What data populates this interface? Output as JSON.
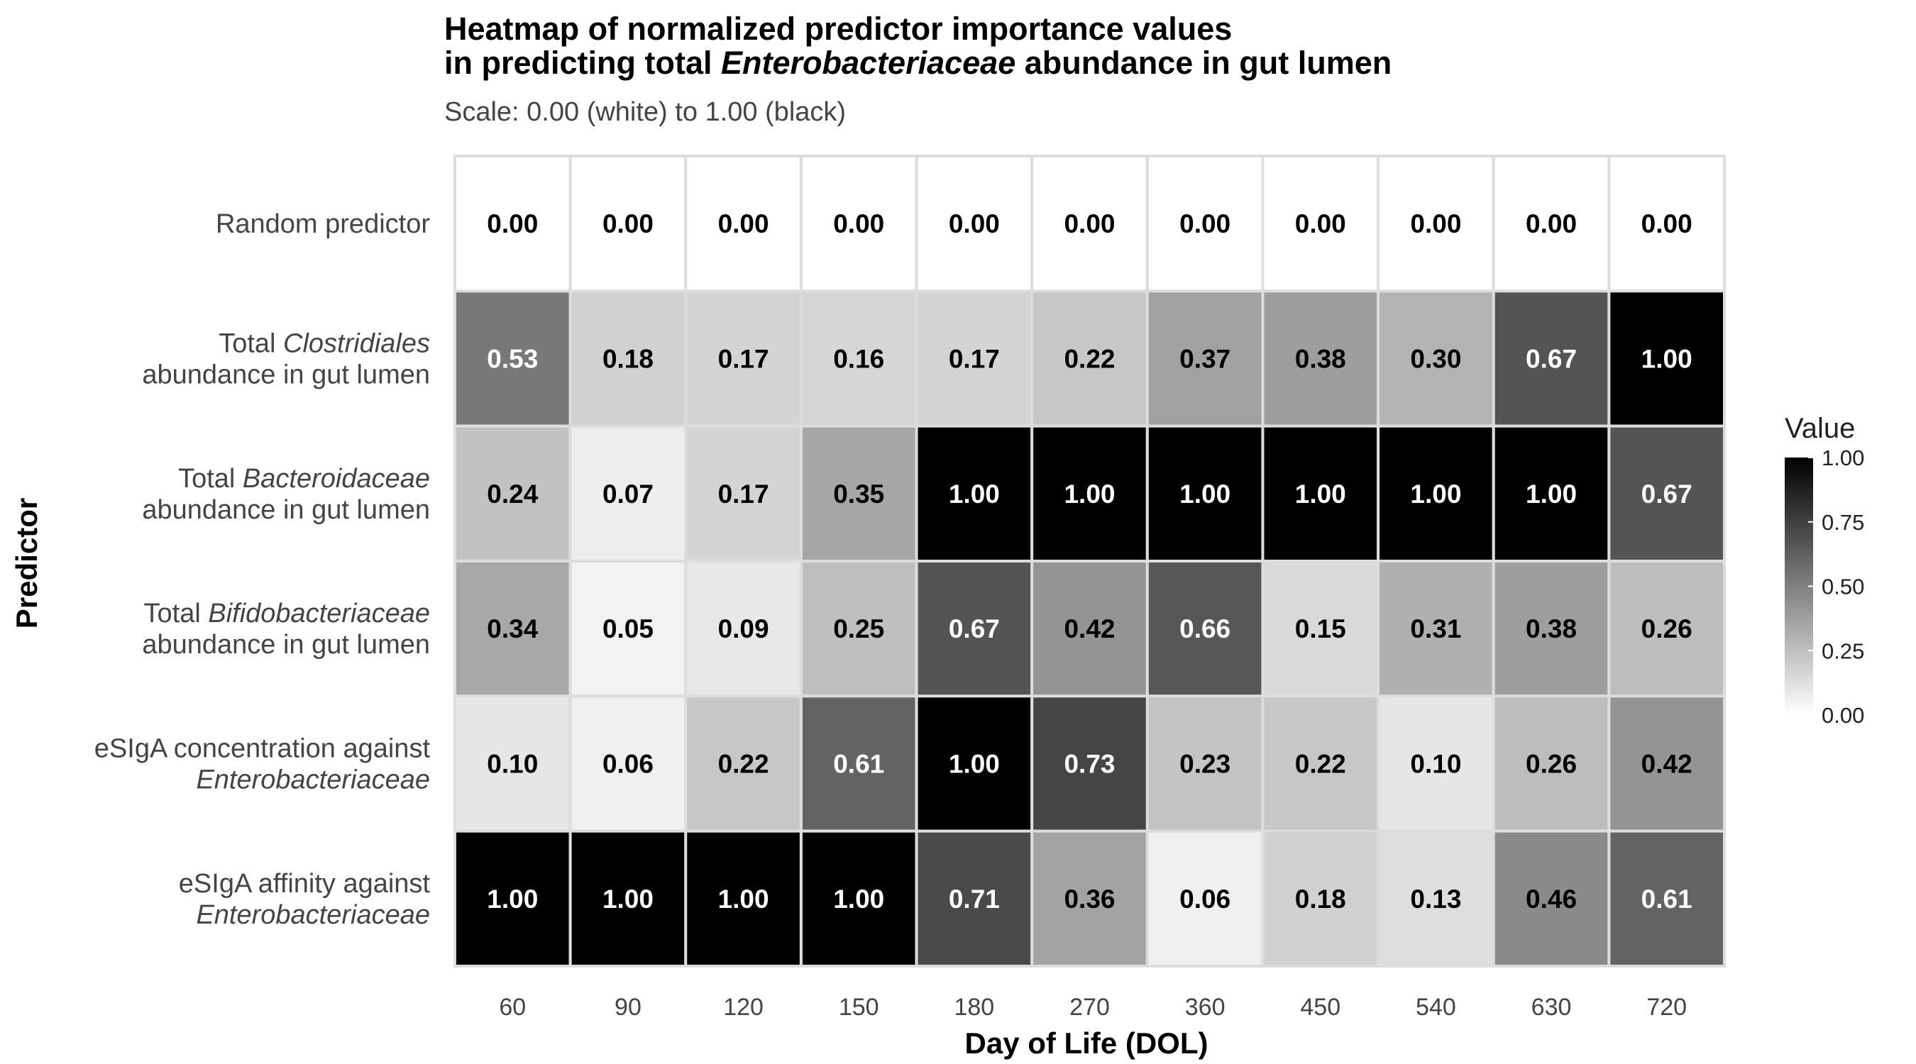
{
  "chart_data": {
    "type": "heatmap",
    "title_line1": "Heatmap of normalized predictor importance values",
    "title_line2_prefix": "in predicting total ",
    "title_line2_italic": "Enterobacteriaceae",
    "title_line2_suffix": " abundance in gut lumen",
    "subtitle": "Scale: 0.00 (white) to 1.00 (black)",
    "xlabel": "Day of Life (DOL)",
    "ylabel": "Predictor",
    "x_categories": [
      "60",
      "90",
      "120",
      "150",
      "180",
      "270",
      "360",
      "450",
      "540",
      "630",
      "720"
    ],
    "rows": [
      {
        "line1": [
          {
            "text": "Random predictor",
            "italic": false
          }
        ],
        "line2": [],
        "values": [
          0.0,
          0.0,
          0.0,
          0.0,
          0.0,
          0.0,
          0.0,
          0.0,
          0.0,
          0.0,
          0.0
        ]
      },
      {
        "line1": [
          {
            "text": "Total ",
            "italic": false
          },
          {
            "text": "Clostridiales",
            "italic": true
          }
        ],
        "line2": [
          {
            "text": "abundance in gut lumen",
            "italic": false
          }
        ],
        "values": [
          0.53,
          0.18,
          0.17,
          0.16,
          0.17,
          0.22,
          0.37,
          0.38,
          0.3,
          0.67,
          1.0
        ]
      },
      {
        "line1": [
          {
            "text": "Total ",
            "italic": false
          },
          {
            "text": "Bacteroidaceae",
            "italic": true
          }
        ],
        "line2": [
          {
            "text": "abundance in gut lumen",
            "italic": false
          }
        ],
        "values": [
          0.24,
          0.07,
          0.17,
          0.35,
          1.0,
          1.0,
          1.0,
          1.0,
          1.0,
          1.0,
          0.67
        ]
      },
      {
        "line1": [
          {
            "text": "Total ",
            "italic": false
          },
          {
            "text": "Bifidobacteriaceae",
            "italic": true
          }
        ],
        "line2": [
          {
            "text": "abundance in gut lumen",
            "italic": false
          }
        ],
        "values": [
          0.34,
          0.05,
          0.09,
          0.25,
          0.67,
          0.42,
          0.66,
          0.15,
          0.31,
          0.38,
          0.26
        ]
      },
      {
        "line1": [
          {
            "text": "eSIgA concentration against",
            "italic": false
          }
        ],
        "line2": [
          {
            "text": "Enterobacteriaceae",
            "italic": true
          }
        ],
        "values": [
          0.1,
          0.06,
          0.22,
          0.61,
          1.0,
          0.73,
          0.23,
          0.22,
          0.1,
          0.26,
          0.42
        ]
      },
      {
        "line1": [
          {
            "text": "eSIgA affinity against",
            "italic": false
          }
        ],
        "line2": [
          {
            "text": "Enterobacteriaceae",
            "italic": true
          }
        ],
        "values": [
          1.0,
          1.0,
          1.0,
          1.0,
          0.71,
          0.36,
          0.06,
          0.18,
          0.13,
          0.46,
          0.61
        ]
      }
    ],
    "legend": {
      "title": "Value",
      "ticks": [
        "1.00",
        "0.75",
        "0.50",
        "0.25",
        "0.00"
      ],
      "range": [
        0,
        1
      ]
    },
    "color_low": "#ffffff",
    "color_high": "#000000",
    "grid_line_color": "#dddddd",
    "label_dark_color": "#000000",
    "label_light_color": "#ffffff"
  }
}
